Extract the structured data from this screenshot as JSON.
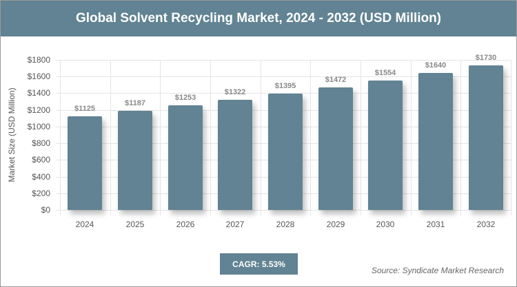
{
  "title": "Global Solvent Recycling Market, 2024 - 2032 (USD Million)",
  "cagr_label": "CAGR: 5.53%",
  "source": "Source: Syndicate Market Research",
  "colors": {
    "header": "#618393",
    "bar": "#618393",
    "grid": "#e4e4e4",
    "label": "#888888"
  },
  "chart_data": {
    "type": "bar",
    "title": "Global Solvent Recycling Market, 2024 - 2032 (USD Million)",
    "xlabel": "",
    "ylabel": "Market Size (USD Million)",
    "categories": [
      "2024",
      "2025",
      "2026",
      "2027",
      "2028",
      "2029",
      "2030",
      "2031",
      "2032"
    ],
    "values": [
      1125,
      1187,
      1253,
      1322,
      1395,
      1472,
      1554,
      1640,
      1730
    ],
    "value_labels": [
      "$1125",
      "$1187",
      "$1253",
      "$1322",
      "$1395",
      "$1472",
      "$1554",
      "$1640",
      "$1730"
    ],
    "yticks": [
      "$0",
      "$200",
      "$400",
      "$600",
      "$800",
      "$1000",
      "$1200",
      "$1400",
      "$1600",
      "$1800"
    ],
    "ylim": [
      0,
      1800
    ],
    "grid": true,
    "legend": null,
    "annotations": [
      "CAGR: 5.53%",
      "Source: Syndicate Market Research"
    ]
  }
}
